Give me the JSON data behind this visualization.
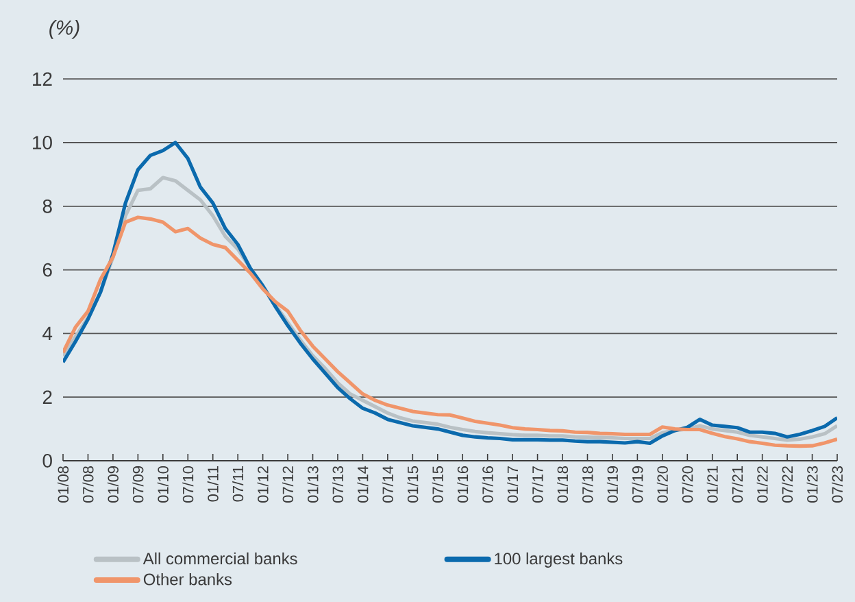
{
  "chart_data": {
    "type": "line",
    "ylabel": "(%)",
    "categories": [
      "01/08",
      null,
      "07/08",
      null,
      "01/09",
      null,
      "07/09",
      null,
      "01/10",
      null,
      "07/10",
      null,
      "01/11",
      null,
      "07/11",
      null,
      "01/12",
      null,
      "07/12",
      null,
      "01/13",
      null,
      "07/13",
      null,
      "01/14",
      null,
      "07/14",
      null,
      "01/15",
      null,
      "07/15",
      null,
      "01/16",
      null,
      "07/16",
      null,
      "01/17",
      null,
      "07/17",
      null,
      "01/18",
      null,
      "07/18",
      null,
      "01/19",
      null,
      "07/19",
      null,
      "01/20",
      null,
      "07/20",
      null,
      "01/21",
      null,
      "07/21",
      null,
      "01/22",
      null,
      "07/22",
      null,
      "01/23",
      null,
      "07/23"
    ],
    "series": [
      {
        "name": "All commercial banks",
        "color": "#b9c1c5",
        "values": [
          3.3,
          3.9,
          4.5,
          5.3,
          6.4,
          7.7,
          8.5,
          8.55,
          8.9,
          8.8,
          8.5,
          8.2,
          7.7,
          7.05,
          6.65,
          6.05,
          5.5,
          4.9,
          4.35,
          3.8,
          3.3,
          2.9,
          2.45,
          2.1,
          1.9,
          1.7,
          1.5,
          1.35,
          1.25,
          1.2,
          1.15,
          1.05,
          0.98,
          0.92,
          0.88,
          0.85,
          0.82,
          0.8,
          0.8,
          0.78,
          0.78,
          0.75,
          0.74,
          0.73,
          0.72,
          0.7,
          0.7,
          0.7,
          0.88,
          0.95,
          1.0,
          1.1,
          1.0,
          0.95,
          0.9,
          0.8,
          0.75,
          0.7,
          0.65,
          0.68,
          0.75,
          0.85,
          1.1
        ]
      },
      {
        "name": "100 largest banks",
        "color": "#0b6aad",
        "values": [
          3.1,
          3.75,
          4.45,
          5.3,
          6.5,
          8.1,
          9.15,
          9.6,
          9.75,
          10.0,
          9.5,
          8.6,
          8.1,
          7.3,
          6.8,
          6.05,
          5.5,
          4.85,
          4.25,
          3.7,
          3.2,
          2.75,
          2.3,
          1.95,
          1.65,
          1.5,
          1.3,
          1.2,
          1.1,
          1.05,
          1.0,
          0.9,
          0.8,
          0.75,
          0.72,
          0.7,
          0.66,
          0.66,
          0.66,
          0.65,
          0.65,
          0.62,
          0.6,
          0.6,
          0.58,
          0.56,
          0.6,
          0.55,
          0.78,
          0.95,
          1.05,
          1.3,
          1.12,
          1.08,
          1.04,
          0.9,
          0.9,
          0.86,
          0.75,
          0.83,
          0.95,
          1.08,
          1.35
        ]
      },
      {
        "name": "Other banks",
        "color": "#f0956a",
        "values": [
          3.4,
          4.2,
          4.7,
          5.7,
          6.4,
          7.5,
          7.65,
          7.6,
          7.5,
          7.2,
          7.3,
          7.0,
          6.8,
          6.7,
          6.3,
          5.9,
          5.4,
          5.0,
          4.7,
          4.1,
          3.6,
          3.2,
          2.8,
          2.45,
          2.1,
          1.9,
          1.75,
          1.65,
          1.55,
          1.5,
          1.45,
          1.44,
          1.34,
          1.24,
          1.18,
          1.12,
          1.04,
          1.0,
          0.98,
          0.95,
          0.94,
          0.9,
          0.89,
          0.86,
          0.85,
          0.83,
          0.83,
          0.83,
          1.06,
          1.0,
          0.98,
          0.98,
          0.86,
          0.76,
          0.69,
          0.6,
          0.55,
          0.49,
          0.47,
          0.46,
          0.47,
          0.56,
          0.68
        ]
      }
    ],
    "ylim": [
      0,
      12
    ],
    "yticks": [
      0,
      2,
      4,
      6,
      8,
      10,
      12
    ],
    "grid": "y",
    "legend": "bottom"
  }
}
